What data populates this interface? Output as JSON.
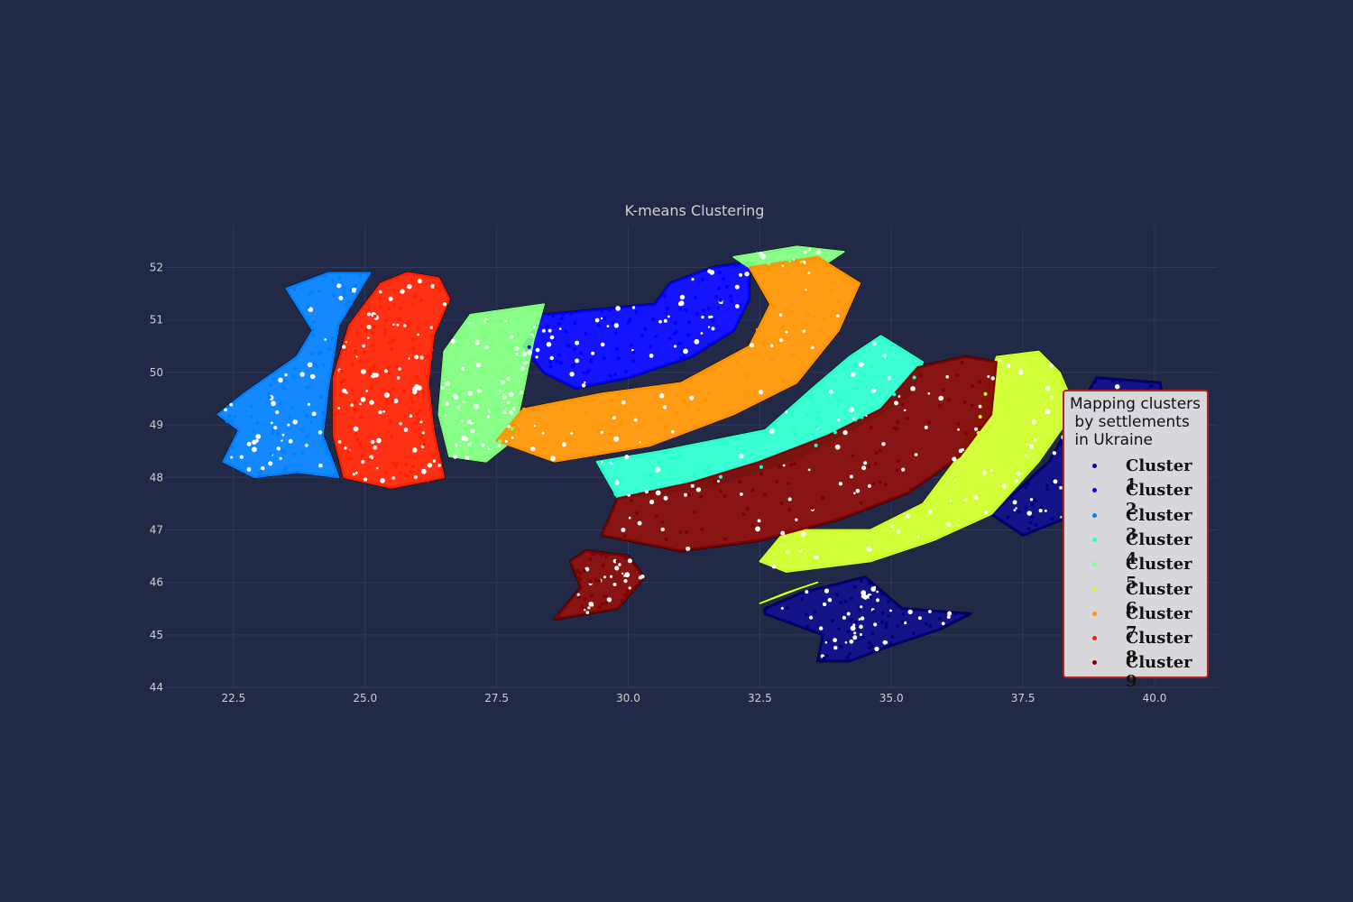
{
  "chart_data": {
    "type": "scatter",
    "title": "K-means Clustering",
    "subject": "Ukraine settlements map",
    "xlim": [
      21.2,
      41.2
    ],
    "ylim": [
      44,
      52.8
    ],
    "xticks": [
      "22.5",
      "25.0",
      "27.5",
      "30.0",
      "32.5",
      "35.0",
      "37.5",
      "40.0"
    ],
    "xtick_values": [
      22.5,
      25.0,
      27.5,
      30.0,
      32.5,
      35.0,
      37.5,
      40.0
    ],
    "yticks": [
      "44",
      "45",
      "46",
      "47",
      "48",
      "49",
      "50",
      "51",
      "52"
    ],
    "ytick_values": [
      44,
      45,
      46,
      47,
      48,
      49,
      50,
      51,
      52
    ],
    "grid": true,
    "background_color": "#212946",
    "map_fill_color": "#ffffff",
    "map_border_color": "#000000",
    "legend": {
      "title": "Mapping clusters\n by settlements\n in Ukraine",
      "placement": "right",
      "border_color": "#b22222",
      "entries": [
        {
          "label": "Cluster 1",
          "color": "#00007f"
        },
        {
          "label": "Cluster 2",
          "color": "#0000ff"
        },
        {
          "label": "Cluster 3",
          "color": "#007fff"
        },
        {
          "label": "Cluster 4",
          "color": "#29ffce"
        },
        {
          "label": "Cluster 5",
          "color": "#7fff7f"
        },
        {
          "label": "Cluster 6",
          "color": "#ceff29"
        },
        {
          "label": "Cluster 7",
          "color": "#ff9400"
        },
        {
          "label": "Cluster 8",
          "color": "#ff2000"
        },
        {
          "label": "Cluster 9",
          "color": "#7f0000"
        }
      ]
    },
    "series": [
      {
        "name": "Cluster 1",
        "color": "#00007f",
        "regions": [
          [
            [
              38.9,
              49.9
            ],
            [
              40.1,
              49.8
            ],
            [
              40.2,
              49.3
            ],
            [
              39.7,
              48.9
            ],
            [
              40.0,
              48.3
            ],
            [
              39.3,
              47.9
            ],
            [
              38.5,
              47.3
            ],
            [
              37.5,
              46.9
            ],
            [
              36.9,
              47.3
            ],
            [
              38.0,
              48.3
            ]
          ],
          [
            [
              32.6,
              45.5
            ],
            [
              33.3,
              45.8
            ],
            [
              34.5,
              46.1
            ],
            [
              35.2,
              45.5
            ],
            [
              36.5,
              45.4
            ],
            [
              35.9,
              45.1
            ],
            [
              35.0,
              44.8
            ],
            [
              34.2,
              44.5
            ],
            [
              33.6,
              44.5
            ],
            [
              33.7,
              45.0
            ],
            [
              32.6,
              45.4
            ]
          ]
        ]
      },
      {
        "name": "Cluster 2",
        "color": "#0000ff",
        "regions": [
          [
            [
              28.4,
              51.1
            ],
            [
              30.5,
              51.3
            ],
            [
              30.8,
              51.7
            ],
            [
              31.6,
              52.0
            ],
            [
              32.3,
              52.1
            ],
            [
              32.3,
              51.4
            ],
            [
              32.0,
              50.8
            ],
            [
              31.2,
              50.3
            ],
            [
              30.0,
              49.9
            ],
            [
              29.0,
              49.7
            ],
            [
              28.4,
              50.0
            ],
            [
              28.0,
              50.5
            ]
          ]
        ]
      },
      {
        "name": "Cluster 3",
        "color": "#007fff",
        "regions": [
          [
            [
              23.5,
              51.6
            ],
            [
              24.3,
              51.9
            ],
            [
              25.1,
              51.9
            ],
            [
              24.5,
              50.9
            ],
            [
              24.3,
              49.7
            ],
            [
              24.2,
              48.8
            ],
            [
              24.5,
              48.0
            ],
            [
              23.7,
              48.1
            ],
            [
              22.9,
              48.0
            ],
            [
              22.3,
              48.3
            ],
            [
              22.6,
              48.9
            ],
            [
              22.2,
              49.2
            ],
            [
              22.7,
              49.6
            ],
            [
              23.7,
              50.3
            ],
            [
              24.0,
              50.8
            ]
          ]
        ]
      },
      {
        "name": "Cluster 4",
        "color": "#29ffce",
        "regions": [
          [
            [
              34.8,
              50.7
            ],
            [
              35.6,
              50.2
            ],
            [
              35.4,
              49.6
            ],
            [
              34.6,
              49.1
            ],
            [
              33.3,
              48.4
            ],
            [
              31.5,
              47.8
            ],
            [
              29.8,
              47.6
            ],
            [
              29.4,
              48.3
            ],
            [
              30.6,
              48.5
            ],
            [
              32.6,
              48.9
            ],
            [
              33.5,
              49.7
            ],
            [
              34.2,
              50.3
            ]
          ]
        ]
      },
      {
        "name": "Cluster 5",
        "color": "#7fff7f",
        "regions": [
          [
            [
              26.5,
              50.4
            ],
            [
              27.0,
              51.1
            ],
            [
              28.4,
              51.3
            ],
            [
              28.2,
              50.6
            ],
            [
              28.0,
              49.6
            ],
            [
              27.8,
              48.7
            ],
            [
              27.3,
              48.3
            ],
            [
              26.6,
              48.4
            ],
            [
              26.4,
              49.2
            ]
          ],
          [
            [
              32.0,
              52.2
            ],
            [
              33.2,
              52.4
            ],
            [
              34.1,
              52.3
            ],
            [
              33.8,
              52.1
            ],
            [
              32.3,
              52.0
            ]
          ]
        ]
      },
      {
        "name": "Cluster 6",
        "color": "#ceff29",
        "regions": [
          [
            [
              37.0,
              50.3
            ],
            [
              37.8,
              50.4
            ],
            [
              38.2,
              50.0
            ],
            [
              38.5,
              49.3
            ],
            [
              37.8,
              48.3
            ],
            [
              36.9,
              47.3
            ],
            [
              35.8,
              46.8
            ],
            [
              34.6,
              46.4
            ],
            [
              33.0,
              46.2
            ],
            [
              32.5,
              46.4
            ],
            [
              33.0,
              47.0
            ],
            [
              34.6,
              47.0
            ],
            [
              35.6,
              47.5
            ],
            [
              36.2,
              48.3
            ],
            [
              36.6,
              49.1
            ]
          ],
          [
            [
              32.5,
              45.6
            ],
            [
              33.3,
              45.9
            ],
            [
              33.6,
              46.0
            ],
            [
              33.0,
              45.8
            ]
          ]
        ]
      },
      {
        "name": "Cluster 7",
        "color": "#ff9400",
        "regions": [
          [
            [
              32.3,
              52.0
            ],
            [
              33.6,
              52.2
            ],
            [
              34.4,
              51.7
            ],
            [
              34.0,
              50.8
            ],
            [
              33.2,
              49.8
            ],
            [
              32.0,
              49.2
            ],
            [
              30.4,
              48.6
            ],
            [
              28.6,
              48.3
            ],
            [
              27.5,
              48.7
            ],
            [
              28.0,
              49.3
            ],
            [
              29.5,
              49.6
            ],
            [
              31.0,
              49.8
            ],
            [
              32.3,
              50.5
            ],
            [
              32.7,
              51.3
            ]
          ]
        ]
      },
      {
        "name": "Cluster 8",
        "color": "#ff2000",
        "regions": [
          [
            [
              25.3,
              51.7
            ],
            [
              25.8,
              51.9
            ],
            [
              26.4,
              51.8
            ],
            [
              26.6,
              51.4
            ],
            [
              26.3,
              50.7
            ],
            [
              26.2,
              49.8
            ],
            [
              26.3,
              48.9
            ],
            [
              26.5,
              48.0
            ],
            [
              25.5,
              47.8
            ],
            [
              24.6,
              48.0
            ],
            [
              24.4,
              48.8
            ],
            [
              24.4,
              49.9
            ],
            [
              24.7,
              50.9
            ]
          ]
        ]
      },
      {
        "name": "Cluster 9",
        "color": "#7f0000",
        "regions": [
          [
            [
              35.5,
              50.1
            ],
            [
              36.4,
              50.3
            ],
            [
              37.0,
              50.2
            ],
            [
              36.9,
              49.2
            ],
            [
              36.3,
              48.4
            ],
            [
              35.3,
              47.7
            ],
            [
              34.0,
              47.2
            ],
            [
              32.5,
              46.8
            ],
            [
              31.0,
              46.6
            ],
            [
              29.5,
              46.9
            ],
            [
              29.8,
              47.6
            ],
            [
              31.2,
              47.9
            ],
            [
              32.5,
              48.3
            ],
            [
              33.8,
              48.8
            ],
            [
              34.8,
              49.3
            ]
          ],
          [
            [
              29.2,
              46.6
            ],
            [
              30.0,
              46.5
            ],
            [
              30.3,
              46.1
            ],
            [
              29.8,
              45.5
            ],
            [
              28.6,
              45.3
            ],
            [
              29.1,
              45.9
            ],
            [
              28.9,
              46.4
            ]
          ]
        ]
      }
    ]
  }
}
